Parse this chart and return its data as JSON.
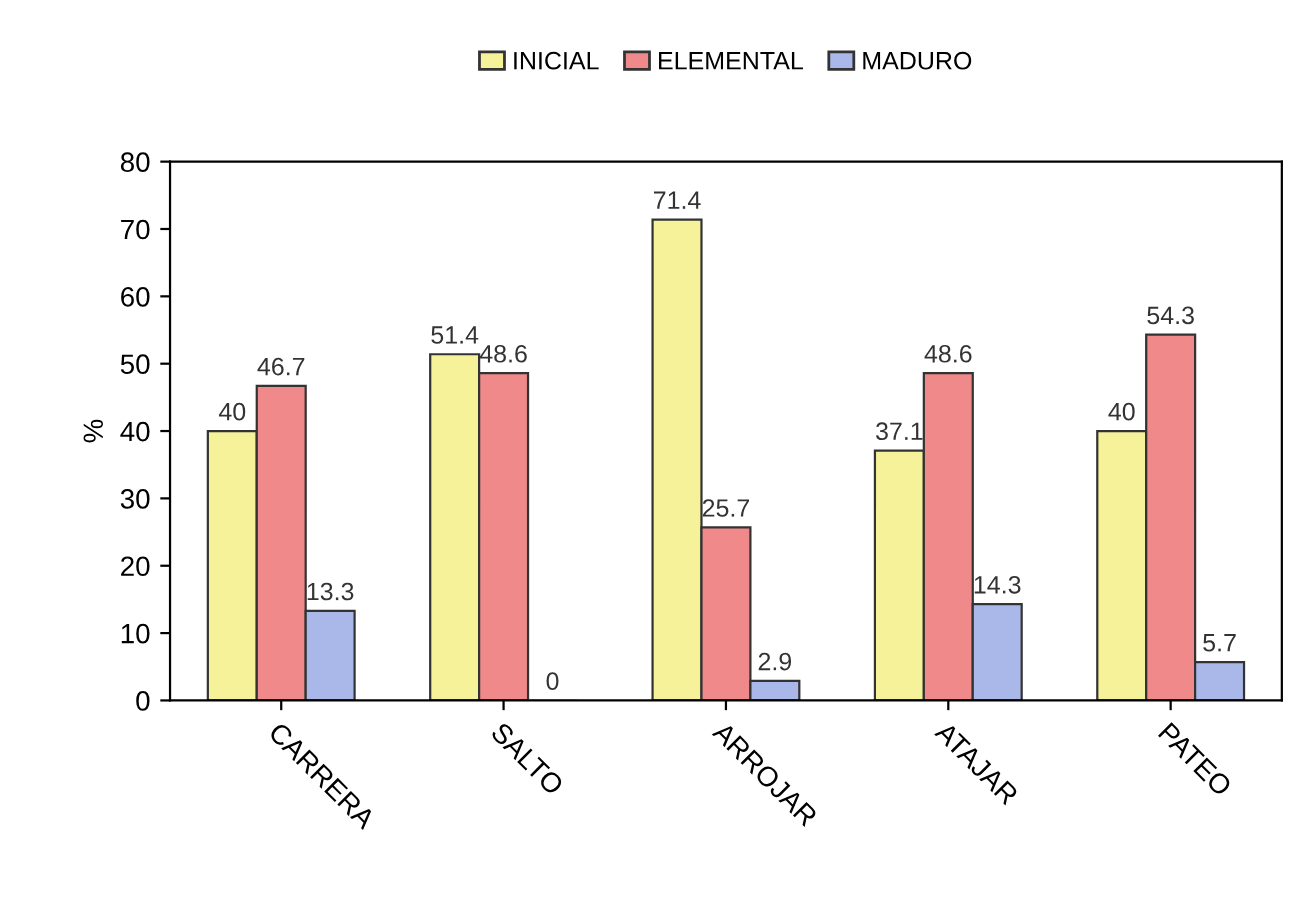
{
  "chart_data": {
    "type": "bar",
    "ylabel": "%",
    "categories": [
      "CARRERA",
      "SALTO",
      "ARROJAR",
      "ATAJAR",
      "PATEO"
    ],
    "series": [
      {
        "name": "INICIAL",
        "color": "#f5f29a",
        "values": [
          40,
          51.4,
          71.4,
          37.1,
          40
        ],
        "value_labels": [
          "40",
          "51.4",
          "71.4",
          "37.1",
          "40"
        ]
      },
      {
        "name": "ELEMENTAL",
        "color": "#f08a8a",
        "values": [
          46.7,
          48.6,
          25.7,
          48.6,
          54.3
        ],
        "value_labels": [
          "46.7",
          "48.6",
          "25.7",
          "48.6",
          "54.3"
        ]
      },
      {
        "name": "MADURO",
        "color": "#a9b8e8",
        "values": [
          13.3,
          0,
          2.9,
          14.3,
          5.7
        ],
        "value_labels": [
          "13.3",
          "0",
          "2.9",
          "14.3",
          "5.7"
        ]
      }
    ],
    "ylim": [
      0,
      80
    ],
    "yticks": [
      0,
      10,
      20,
      30,
      40,
      50,
      60,
      70,
      80
    ],
    "grid": false,
    "legend": "top"
  }
}
